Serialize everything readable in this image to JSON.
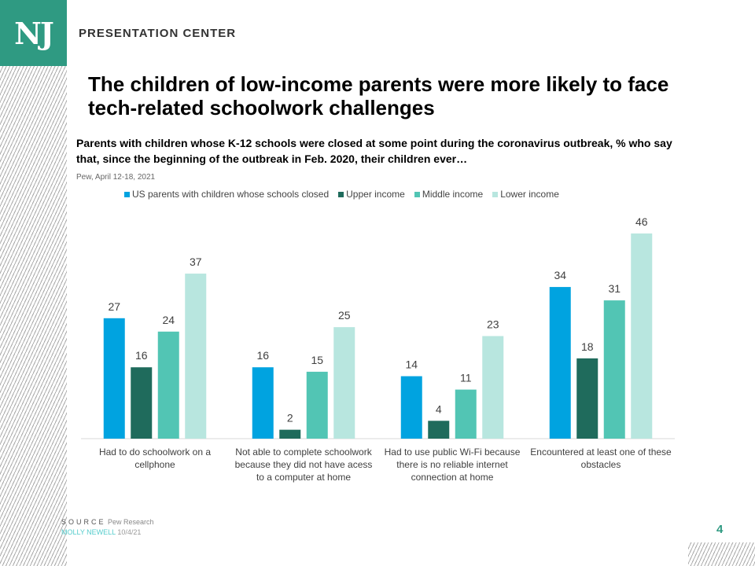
{
  "header": {
    "logo": "NJ",
    "section": "PRESENTATION CENTER"
  },
  "title": "The children of low-income parents were more likely to face tech-related schoolwork challenges",
  "subtitle": "Parents with children whose K-12 schools were closed at some point during the coronavirus outbreak, % who say that, since the beginning of the outbreak in Feb. 2020, their children ever…",
  "note": "Pew, April 12-18, 2021",
  "footer": {
    "source_label": "SOURCE",
    "source": "Pew Research",
    "author": "MOLLY NEWELL",
    "date": "10/4/21",
    "page": "4"
  },
  "chart_data": {
    "type": "bar",
    "categories": [
      "Had to do schoolwork on a cellphone",
      "Not able to complete schoolwork because they did not have acess to a computer at home",
      "Had to use public Wi-Fi because there is no reliable internet connection at home",
      "Encountered at least one of these obstacles"
    ],
    "series": [
      {
        "name": "US parents with children whose schools closed",
        "color": "#00a3e0",
        "values": [
          27,
          16,
          14,
          34
        ]
      },
      {
        "name": "Upper income",
        "color": "#1f6b5c",
        "values": [
          16,
          2,
          4,
          18
        ]
      },
      {
        "name": "Middle income",
        "color": "#52c5b4",
        "values": [
          24,
          15,
          11,
          31
        ]
      },
      {
        "name": "Lower income",
        "color": "#b8e6df",
        "values": [
          37,
          25,
          23,
          46
        ]
      }
    ],
    "legend_position": "top",
    "grid": false,
    "ylim": [
      0,
      46
    ]
  }
}
